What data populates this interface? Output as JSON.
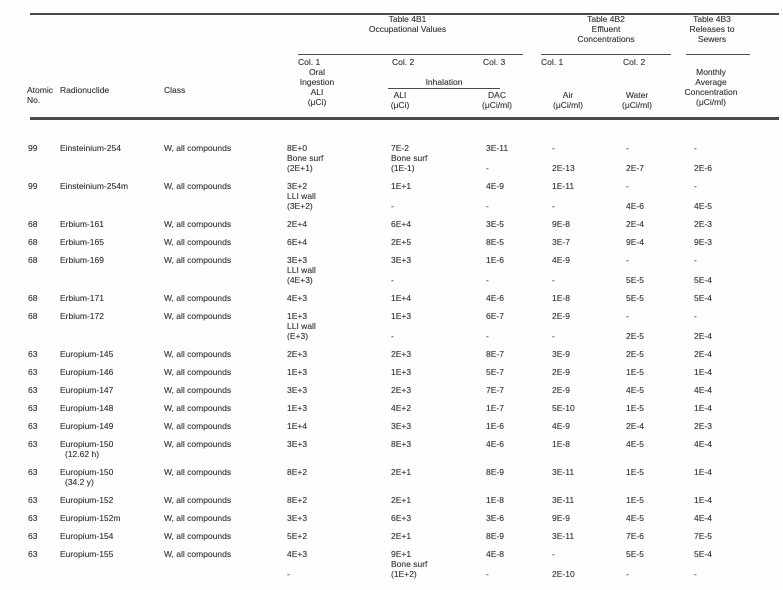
{
  "header": {
    "tables": [
      {
        "lines": [
          "Table 4B1",
          "Occupational Values"
        ]
      },
      {
        "lines": [
          "Table 4B2",
          "Effluent",
          "Concentrations"
        ]
      },
      {
        "lines": [
          "Table 4B3",
          "Releases to",
          "Sewers"
        ]
      }
    ],
    "columns": {
      "oral": {
        "col": "Col. 1",
        "lines": [
          "Oral",
          "Ingestion",
          "ALI",
          "(μCi)"
        ]
      },
      "inhalation_label": "Inhalation",
      "inhal_ali": {
        "col": "Col. 2",
        "lines": [
          "ALI",
          "(μCi)"
        ]
      },
      "dac": {
        "col": "Col. 3",
        "lines": [
          "DAC",
          "(μCi/ml)"
        ]
      },
      "air": {
        "col": "Col. 1",
        "lines": [
          "Air",
          "(μCi/ml)"
        ]
      },
      "water": {
        "col": "Col. 2",
        "lines": [
          "Water",
          "(μCi/ml)"
        ]
      },
      "monthly": {
        "lines": [
          "Monthly",
          "Average",
          "Concentration",
          "(μCi/ml)"
        ]
      },
      "atomic": {
        "lines": [
          "Atomic",
          "No."
        ]
      },
      "radionuclide": "Radionuclide",
      "class": "Class"
    }
  },
  "rows": [
    {
      "atomic_no": "99",
      "name": [
        "Einsteinium-254"
      ],
      "class": "W, all compounds",
      "oral": [
        "8E+0",
        "Bone surf",
        "(2E+1)"
      ],
      "inhal": [
        "7E-2",
        "Bone surf",
        "(1E-1)"
      ],
      "dac": [
        "3E-11",
        "",
        "-"
      ],
      "air": [
        "-",
        "",
        "2E-13"
      ],
      "water": [
        "-",
        "",
        "2E-7"
      ],
      "monthly": [
        "-",
        "",
        "2E-6"
      ]
    },
    {
      "atomic_no": "99",
      "name": [
        "Einsteinium-254m"
      ],
      "class": "W, all compounds",
      "oral": [
        "3E+2",
        "LLI wall",
        "(3E+2)"
      ],
      "inhal": [
        "1E+1",
        "",
        "-"
      ],
      "dac": [
        "4E-9",
        "",
        "-"
      ],
      "air": [
        "1E-11",
        "",
        "-"
      ],
      "water": [
        "-",
        "",
        "4E-6"
      ],
      "monthly": [
        "-",
        "",
        "4E-5"
      ]
    },
    {
      "atomic_no": "68",
      "name": [
        "Erbium-161"
      ],
      "class": "W, all compounds",
      "oral": [
        "2E+4"
      ],
      "inhal": [
        "6E+4"
      ],
      "dac": [
        "3E-5"
      ],
      "air": [
        "9E-8"
      ],
      "water": [
        "2E-4"
      ],
      "monthly": [
        "2E-3"
      ]
    },
    {
      "atomic_no": "68",
      "name": [
        "Erbium-165"
      ],
      "class": "W, all compounds",
      "oral": [
        "6E+4"
      ],
      "inhal": [
        "2E+5"
      ],
      "dac": [
        "8E-5"
      ],
      "air": [
        "3E-7"
      ],
      "water": [
        "9E-4"
      ],
      "monthly": [
        "9E-3"
      ]
    },
    {
      "atomic_no": "68",
      "name": [
        "Erbium-169"
      ],
      "class": "W, all compounds",
      "oral": [
        "3E+3",
        "LLI wall",
        "(4E+3)"
      ],
      "inhal": [
        "3E+3",
        "",
        "-"
      ],
      "dac": [
        "1E-6",
        "",
        "-"
      ],
      "air": [
        "4E-9",
        "",
        "-"
      ],
      "water": [
        "-",
        "",
        "5E-5"
      ],
      "monthly": [
        "-",
        "",
        "5E-4"
      ]
    },
    {
      "atomic_no": "68",
      "name": [
        "Erbium-171"
      ],
      "class": "W, all compounds",
      "oral": [
        "4E+3"
      ],
      "inhal": [
        "1E+4"
      ],
      "dac": [
        "4E-6"
      ],
      "air": [
        "1E-8"
      ],
      "water": [
        "5E-5"
      ],
      "monthly": [
        "5E-4"
      ]
    },
    {
      "atomic_no": "68",
      "name": [
        "Erbium-172"
      ],
      "class": "W, all compounds",
      "oral": [
        "1E+3",
        "LLI wall",
        "(E+3)"
      ],
      "inhal": [
        "1E+3",
        "",
        "-"
      ],
      "dac": [
        "6E-7",
        "",
        "-"
      ],
      "air": [
        "2E-9",
        "",
        "-"
      ],
      "water": [
        "-",
        "",
        "2E-5"
      ],
      "monthly": [
        "-",
        "",
        "2E-4"
      ]
    },
    {
      "atomic_no": "63",
      "name": [
        "Europium-145"
      ],
      "class": "W, all compounds",
      "oral": [
        "2E+3"
      ],
      "inhal": [
        "2E+3"
      ],
      "dac": [
        "8E-7"
      ],
      "air": [
        "3E-9"
      ],
      "water": [
        "2E-5"
      ],
      "monthly": [
        "2E-4"
      ]
    },
    {
      "atomic_no": "63",
      "name": [
        "Europium-146"
      ],
      "class": "W, all compounds",
      "oral": [
        "1E+3"
      ],
      "inhal": [
        "1E+3"
      ],
      "dac": [
        "5E-7"
      ],
      "air": [
        "2E-9"
      ],
      "water": [
        "1E-5"
      ],
      "monthly": [
        "1E-4"
      ]
    },
    {
      "atomic_no": "63",
      "name": [
        "Europium-147"
      ],
      "class": "W, all compounds",
      "oral": [
        "3E+3"
      ],
      "inhal": [
        "2E+3"
      ],
      "dac": [
        "7E-7"
      ],
      "air": [
        "2E-9"
      ],
      "water": [
        "4E-5"
      ],
      "monthly": [
        "4E-4"
      ]
    },
    {
      "atomic_no": "63",
      "name": [
        "Europium-148"
      ],
      "class": "W, all compounds",
      "oral": [
        "1E+3"
      ],
      "inhal": [
        "4E+2"
      ],
      "dac": [
        "1E-7"
      ],
      "air": [
        "5E-10"
      ],
      "water": [
        "1E-5"
      ],
      "monthly": [
        "1E-4"
      ]
    },
    {
      "atomic_no": "63",
      "name": [
        "Europium-149"
      ],
      "class": "W, all compounds",
      "oral": [
        "1E+4"
      ],
      "inhal": [
        "3E+3"
      ],
      "dac": [
        "1E-6"
      ],
      "air": [
        "4E-9"
      ],
      "water": [
        "2E-4"
      ],
      "monthly": [
        "2E-3"
      ]
    },
    {
      "atomic_no": "63",
      "name": [
        "Europium-150",
        "(12.62 h)"
      ],
      "class": "W, all compounds",
      "oral": [
        "3E+3"
      ],
      "inhal": [
        "8E+3"
      ],
      "dac": [
        "4E-6"
      ],
      "air": [
        "1E-8"
      ],
      "water": [
        "4E-5"
      ],
      "monthly": [
        "4E-4"
      ]
    },
    {
      "atomic_no": "63",
      "name": [
        "Europium-150",
        "(34.2 y)"
      ],
      "class": "W, all compounds",
      "oral": [
        "8E+2"
      ],
      "inhal": [
        "2E+1"
      ],
      "dac": [
        "8E-9"
      ],
      "air": [
        "3E-11"
      ],
      "water": [
        "1E-5"
      ],
      "monthly": [
        "1E-4"
      ]
    },
    {
      "atomic_no": "63",
      "name": [
        "Europium-152"
      ],
      "class": "W, all compounds",
      "oral": [
        "8E+2"
      ],
      "inhal": [
        "2E+1"
      ],
      "dac": [
        "1E-8"
      ],
      "air": [
        "3E-11"
      ],
      "water": [
        "1E-5"
      ],
      "monthly": [
        "1E-4"
      ]
    },
    {
      "atomic_no": "63",
      "name": [
        "Europium-152m"
      ],
      "class": "W, all compounds",
      "oral": [
        "3E+3"
      ],
      "inhal": [
        "6E+3"
      ],
      "dac": [
        "3E-6"
      ],
      "air": [
        "9E-9"
      ],
      "water": [
        "4E-5"
      ],
      "monthly": [
        "4E-4"
      ]
    },
    {
      "atomic_no": "63",
      "name": [
        "Europium-154"
      ],
      "class": "W, all compounds",
      "oral": [
        "5E+2"
      ],
      "inhal": [
        "2E+1"
      ],
      "dac": [
        "8E-9"
      ],
      "air": [
        "3E-11"
      ],
      "water": [
        "7E-6"
      ],
      "monthly": [
        "7E-5"
      ]
    },
    {
      "atomic_no": "63",
      "name": [
        "Europium-155"
      ],
      "class": "W, all compounds",
      "oral": [
        "4E+3",
        "",
        "-"
      ],
      "inhal": [
        "9E+1",
        "Bone surf",
        "(1E+2)"
      ],
      "dac": [
        "4E-8",
        "",
        "-"
      ],
      "air": [
        "-",
        "",
        "2E-10"
      ],
      "water": [
        "5E-5",
        "",
        "-"
      ],
      "monthly": [
        "5E-4",
        "",
        "-"
      ]
    }
  ]
}
